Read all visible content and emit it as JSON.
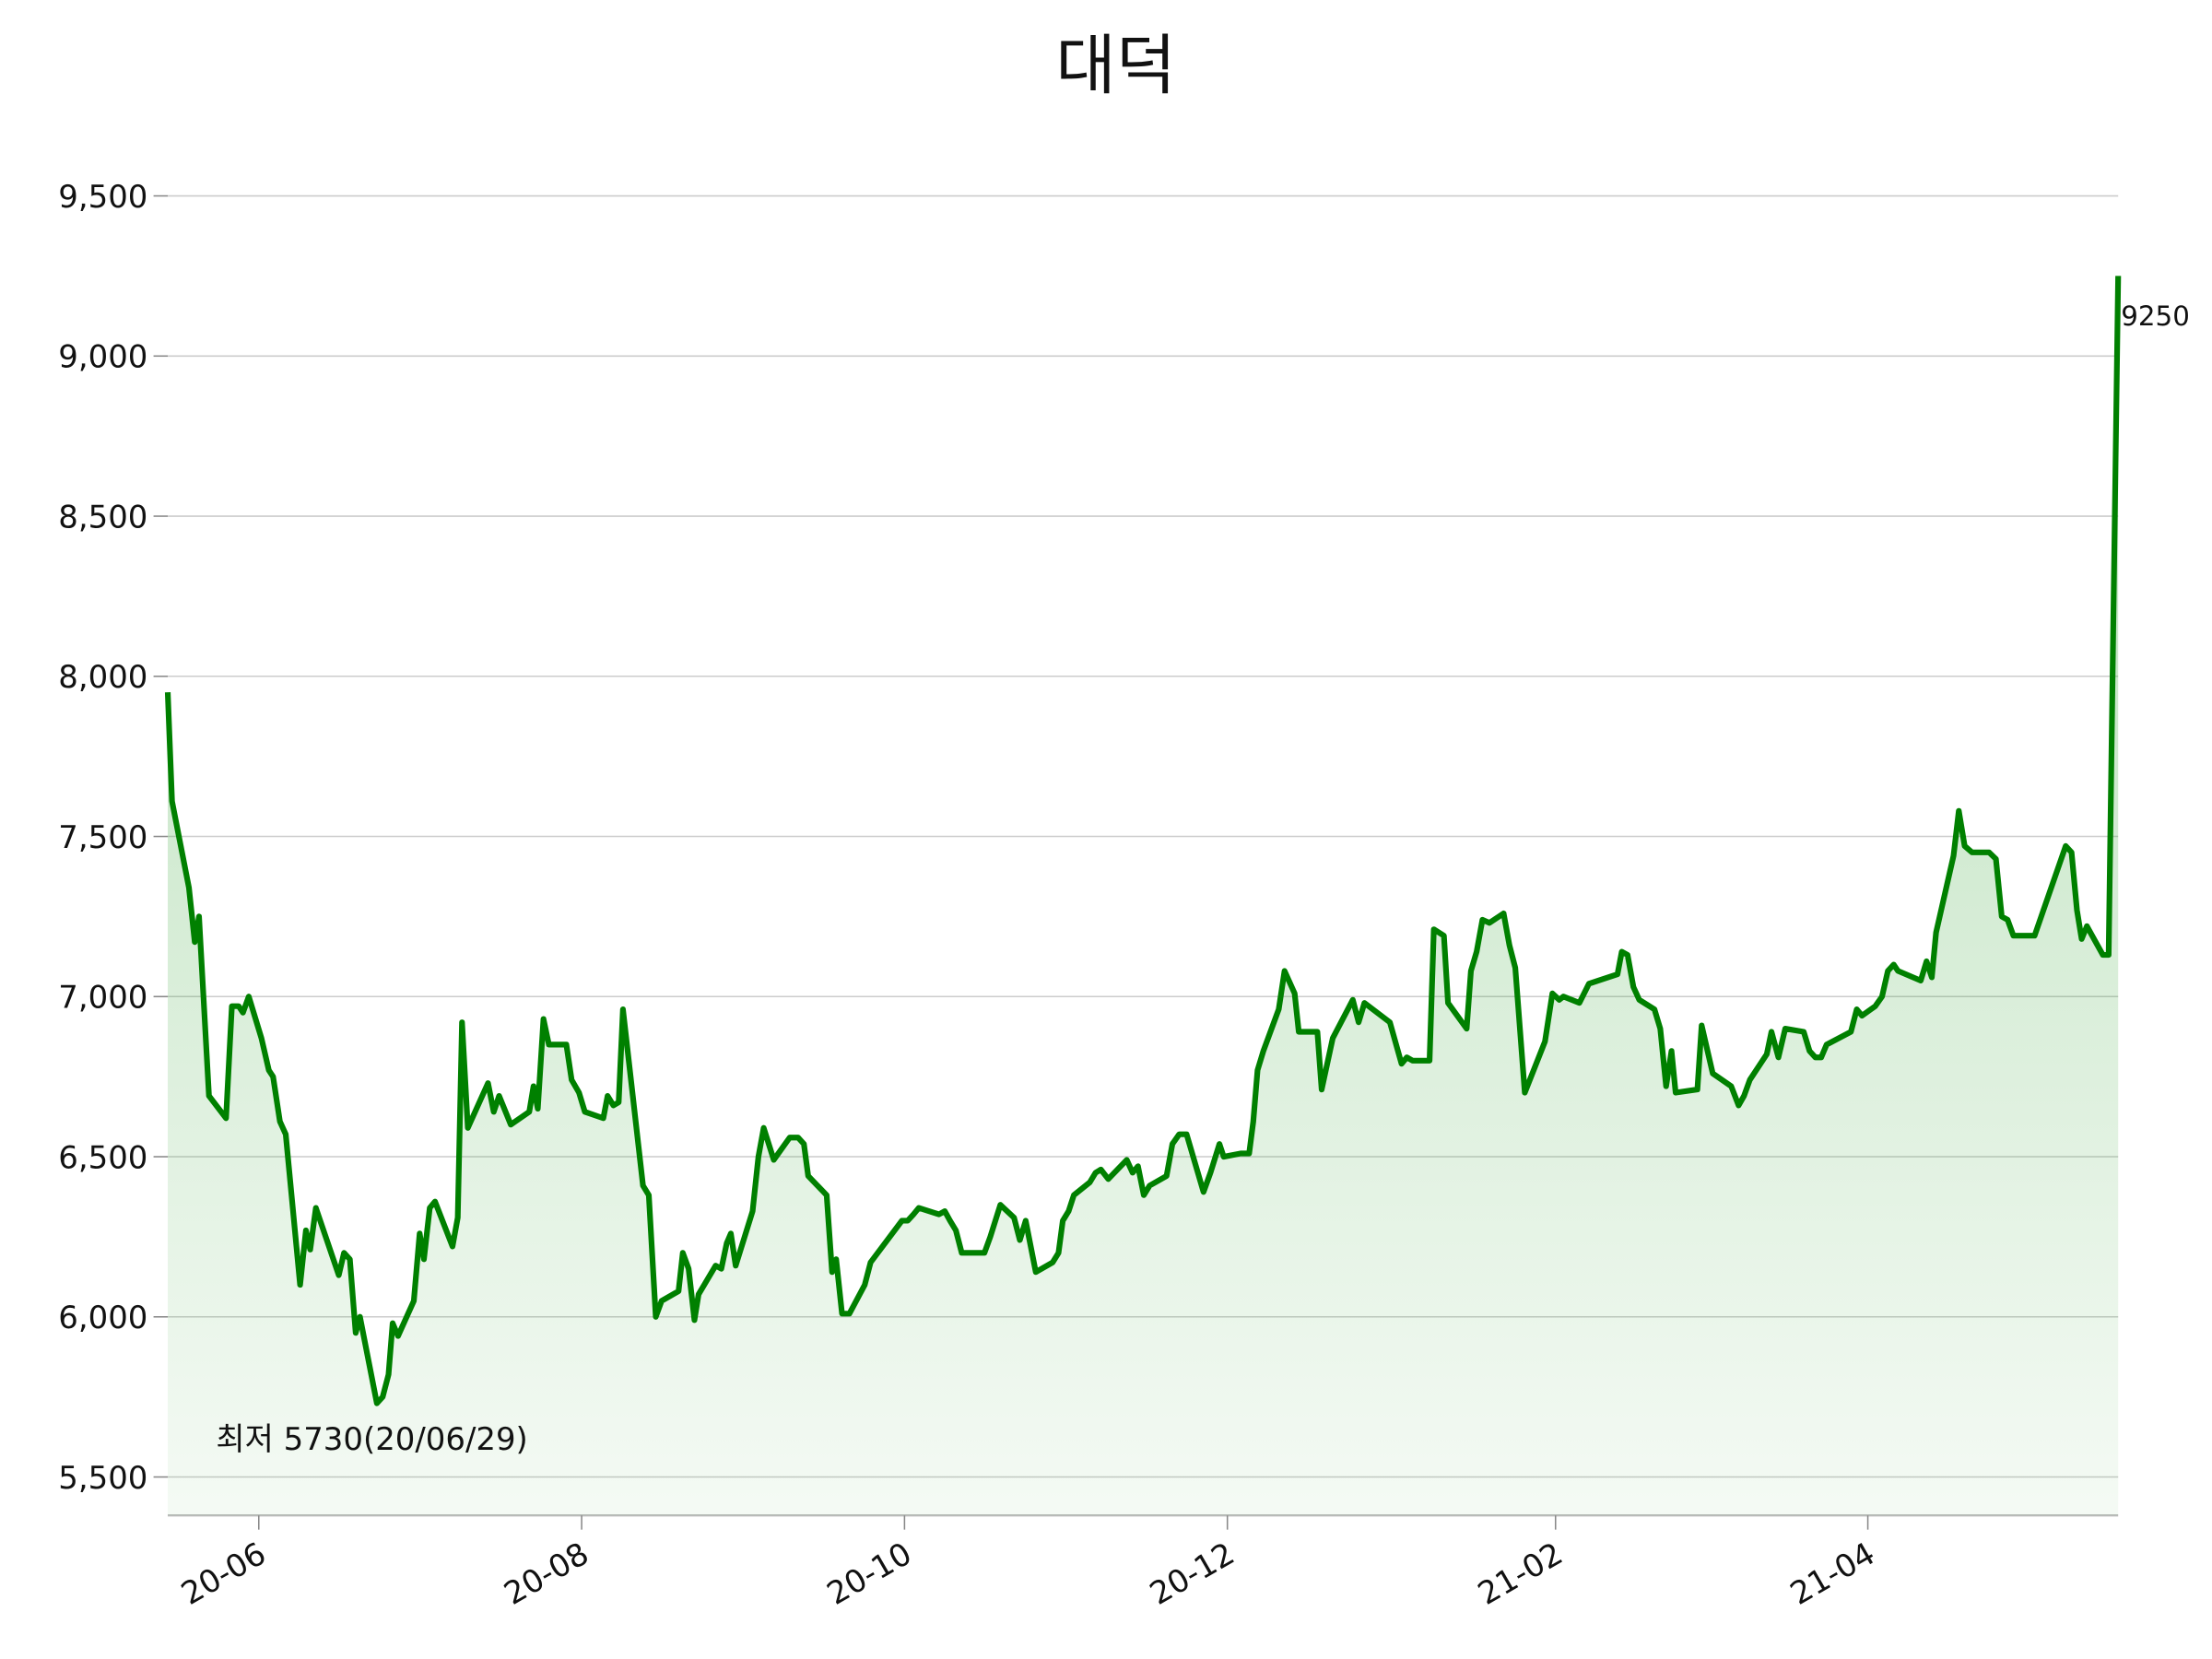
{
  "chart_data": {
    "type": "line",
    "title": "대덕",
    "x": [
      -17.2,
      -16.4,
      -13.2,
      -12.1,
      -11.3,
      -9.4,
      -6.2,
      -5.1,
      -3.8,
      -3.0,
      -1.9,
      0.5,
      1.9,
      2.7,
      4.0,
      5.1,
      7.8,
      8.9,
      9.7,
      10.8,
      15.1,
      16.1,
      17.2,
      18.3,
      19.1,
      22.3,
      23.4,
      24.5,
      25.3,
      26.3,
      29.3,
      30.4,
      31.2,
      32.3,
      33.3,
      36.6,
      37.6,
      38.4,
      39.5,
      43.3,
      44.4,
      45.4,
      47.6,
      51.1,
      51.9,
      52.7,
      53.8,
      54.8,
      58.1,
      59.1,
      60.5,
      61.6,
      65.1,
      65.9,
      67.0,
      68.0,
      68.8,
      72.6,
      73.7,
      75.0,
      76.1,
      79.3,
      80.1,
      81.2,
      82.3,
      83.1,
      86.3,
      87.4,
      88.4,
      89.2,
      90.1,
      93.3,
      94.4,
      95.4,
      97.3,
      100.3,
      101.9,
      103.0,
      103.8,
      107.3,
      108.3,
      109.1,
      110.2,
      111.6,
      114.5,
      115.6,
      121.5,
      122.6,
      123.7,
      124.7,
      128.5,
      129.6,
      130.6,
      131.7,
      132.8,
      136.0,
      137.1,
      138.2,
      140.1,
      142.7,
      143.8,
      144.9,
      146.8,
      150.0,
      151.1,
      151.9,
      153.0,
      154.0,
      157.0,
      158.1,
      159.1,
      160.5,
      164.0,
      165.1,
      166.1,
      167.2,
      168.3,
      171.5,
      172.6,
      173.9,
      175.3,
      178.5,
      179.8,
      181.5,
      182.3,
      185.5,
      187.1,
      187.9,
      188.7,
      189.8,
      192.7,
      193.8,
      195.7,
      196.5,
      200.0,
      200.8,
      202.9,
      206.7,
      207.8,
      208.9,
      213.7,
      215.9,
      216.9,
      218.0,
      221.2,
      222.0,
      223.9,
      224.7,
      228.2,
      229.0,
      230.1,
      231.2,
      232.5,
      235.2,
      236.3,
      237.4,
      239.2,
      243.0,
      244.4,
      245.7,
      246.5,
      249.5,
      251.3,
      256.7,
      257.5,
      258.6,
      259.7,
      260.8,
      263.7,
      264.8,
      265.9,
      266.9,
      267.7,
      271.8,
      272.6,
      274.7,
      278.2,
      279.6,
      280.6,
      281.7,
      284.9,
      285.8,
      287.1,
      288.4,
      291.9,
      293.0,
      294.1,
      295.2,
      296.2,
      300.8,
      301.9,
      302.9,
      305.4,
      306.7,
      307.8,
      308.9,
      309.7,
      314.0,
      315.1,
      316.1,
      316.9,
      320.2,
      321.2,
      322.3,
      323.7,
      326.9,
      328.2,
      329.3,
      330.4,
      331.5,
      335.5,
      337.6,
      341.4,
      342.5,
      343.5,
      344.4,
      345.4,
      348.4,
      349.5,
      351.3
    ],
    "series": [
      {
        "color": "#008000",
        "values": [
          7950,
          7610,
          7340,
          7170,
          7250,
          6690,
          6620,
          6970,
          6970,
          6950,
          7000,
          6870,
          6770,
          6750,
          6610,
          6570,
          6100,
          6270,
          6210,
          6340,
          6130,
          6200,
          6180,
          5950,
          6000,
          5730,
          5750,
          5820,
          5980,
          5940,
          6050,
          6260,
          6180,
          6340,
          6360,
          6220,
          6310,
          6920,
          6590,
          6730,
          6640,
          6690,
          6600,
          6640,
          6720,
          6650,
          6930,
          6850,
          6850,
          6740,
          6700,
          6640,
          6620,
          6690,
          6660,
          6670,
          6960,
          6410,
          6380,
          6000,
          6050,
          6080,
          6200,
          6150,
          5990,
          6070,
          6160,
          6150,
          6230,
          6260,
          6160,
          6330,
          6500,
          6590,
          6490,
          6560,
          6560,
          6540,
          6440,
          6380,
          6140,
          6180,
          6010,
          6010,
          6100,
          6170,
          6300,
          6300,
          6320,
          6340,
          6320,
          6330,
          6300,
          6270,
          6200,
          6200,
          6200,
          6250,
          6350,
          6310,
          6240,
          6300,
          6140,
          6170,
          6200,
          6300,
          6330,
          6380,
          6420,
          6450,
          6460,
          6430,
          6490,
          6450,
          6470,
          6380,
          6410,
          6440,
          6540,
          6570,
          6570,
          6390,
          6450,
          6540,
          6500,
          6510,
          6510,
          6610,
          6770,
          6830,
          6960,
          7080,
          7010,
          6890,
          6890,
          6710,
          6870,
          6990,
          6920,
          6980,
          6920,
          6790,
          6810,
          6800,
          6800,
          7210,
          7190,
          6980,
          6900,
          7080,
          7140,
          7240,
          7230,
          7260,
          7160,
          7090,
          6700,
          6860,
          7010,
          6990,
          7000,
          6980,
          7040,
          7070,
          7140,
          7130,
          7030,
          6990,
          6960,
          6900,
          6720,
          6830,
          6700,
          6710,
          6910,
          6760,
          6720,
          6660,
          6690,
          6740,
          6820,
          6890,
          6810,
          6900,
          6890,
          6830,
          6810,
          6810,
          6850,
          6890,
          6960,
          6940,
          6970,
          7000,
          7080,
          7100,
          7080,
          7050,
          7110,
          7060,
          7200,
          7440,
          7580,
          7470,
          7450,
          7450,
          7430,
          7250,
          7240,
          7190,
          7190,
          7290,
          7470,
          7450,
          7270,
          7180,
          7220,
          7130,
          7130,
          9250
        ]
      }
    ],
    "xlim": [
      -17.2,
      351.3
    ],
    "xticks": [
      {
        "value": 0,
        "label": "20-06"
      },
      {
        "value": 61,
        "label": "20-08"
      },
      {
        "value": 122,
        "label": "20-10"
      },
      {
        "value": 183,
        "label": "20-12"
      },
      {
        "value": 245,
        "label": "21-02"
      },
      {
        "value": 304,
        "label": "21-04"
      }
    ],
    "ylim": [
      5380,
      9690
    ],
    "yticks": [
      {
        "value": 5500,
        "label": "5,500"
      },
      {
        "value": 6000,
        "label": "6,000"
      },
      {
        "value": 6500,
        "label": "6,500"
      },
      {
        "value": 7000,
        "label": "7,000"
      },
      {
        "value": 7500,
        "label": "7,500"
      },
      {
        "value": 8000,
        "label": "8,000"
      },
      {
        "value": 8500,
        "label": "8,500"
      },
      {
        "value": 9000,
        "label": "9,000"
      },
      {
        "value": 9500,
        "label": "9,500"
      }
    ],
    "grid": true,
    "annotations": [
      {
        "text": "최저 5730(20/06/29)",
        "color": "#0000ff"
      },
      {
        "text": "9250",
        "color": "#000000"
      }
    ]
  }
}
